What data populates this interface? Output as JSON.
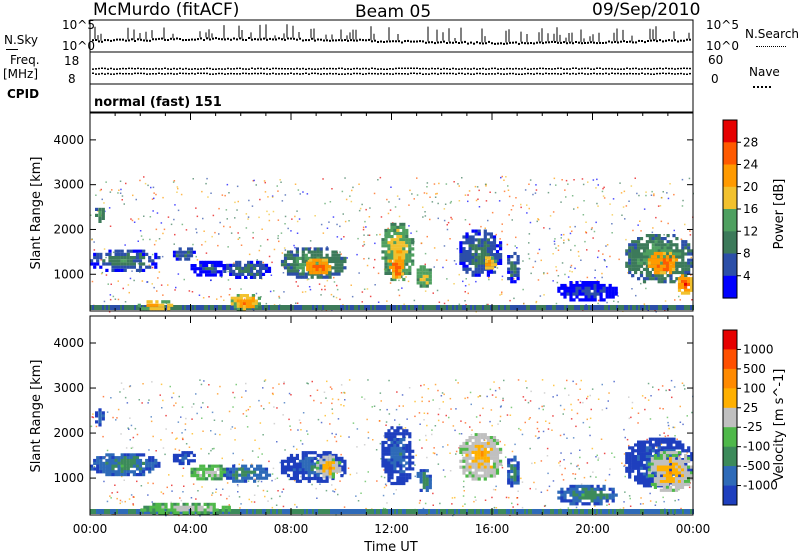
{
  "header": {
    "station": "McMurdo (fitACF)",
    "beam": "Beam 05",
    "date": "09/Sep/2010"
  },
  "left_labels": {
    "nsky": "N.Sky",
    "freq": "Freq.",
    "freq_unit": "[MHz]",
    "cpid": "CPID"
  },
  "right_labels": {
    "nsearch": "N.Search",
    "nave": "Nave"
  },
  "cpid_text": "normal (fast) 151",
  "colors": {
    "power": [
      "#0000ff",
      "#2c4fa8",
      "#3c7a5a",
      "#4fa060",
      "#f2c12e",
      "#ff9a00",
      "#ff5a00",
      "#e60000"
    ],
    "velocity": [
      "#1e3fbe",
      "#2e6ab8",
      "#3c8a5a",
      "#4fb84a",
      "#c0c0c0",
      "#ffb000",
      "#ff8a00",
      "#ff5000",
      "#e60000"
    ]
  },
  "chart_data": [
    {
      "type": "line",
      "name": "noise-panel",
      "left_ticks": [
        "10^5",
        "10^0"
      ],
      "right_ticks": [
        "10^5",
        "10^0"
      ],
      "note_left": "N.Sky",
      "note_right": "N.Search"
    },
    {
      "type": "line",
      "name": "frequency-panel",
      "left_ticks": [
        "18",
        "8"
      ],
      "right_ticks": [
        "60",
        "0"
      ],
      "note_left": "Freq. [MHz]",
      "note_right": "Nave"
    },
    {
      "type": "heatmap",
      "name": "power-panel",
      "ylabel": "Slant Range [km]",
      "yticks": [
        1000,
        2000,
        3000,
        4000
      ],
      "ylim": [
        180,
        4600
      ],
      "xlim": [
        0,
        24
      ],
      "colorbar": {
        "label": "Power [dB]",
        "ticks": [
          "28",
          "24",
          "20",
          "16",
          "12",
          "8",
          "4"
        ],
        "range": [
          0,
          32
        ]
      },
      "patches": [
        {
          "t0": 0.2,
          "t1": 0.6,
          "r0": 2150,
          "r1": 2550,
          "level": 4
        },
        {
          "t0": 0.0,
          "t1": 2.8,
          "r0": 1050,
          "r1": 1550,
          "level": 3
        },
        {
          "t0": 3.3,
          "t1": 4.2,
          "r0": 1300,
          "r1": 1600,
          "level": 3
        },
        {
          "t0": 4.0,
          "t1": 5.5,
          "r0": 950,
          "r1": 1300,
          "level": 2
        },
        {
          "t0": 5.3,
          "t1": 7.2,
          "r0": 900,
          "r1": 1300,
          "level": 3
        },
        {
          "t0": 7.6,
          "t1": 10.2,
          "r0": 900,
          "r1": 1600,
          "level": 4
        },
        {
          "t0": 8.6,
          "t1": 9.6,
          "r0": 1000,
          "r1": 1350,
          "level": 7
        },
        {
          "t0": 11.6,
          "t1": 12.9,
          "r0": 850,
          "r1": 2150,
          "level": 5
        },
        {
          "t0": 11.9,
          "t1": 12.5,
          "r0": 900,
          "r1": 1400,
          "level": 7
        },
        {
          "t0": 13.0,
          "t1": 13.6,
          "r0": 700,
          "r1": 1200,
          "level": 5
        },
        {
          "t0": 14.7,
          "t1": 16.4,
          "r0": 950,
          "r1": 2000,
          "level": 3
        },
        {
          "t0": 15.6,
          "t1": 16.2,
          "r0": 1100,
          "r1": 1400,
          "level": 6
        },
        {
          "t0": 16.6,
          "t1": 17.1,
          "r0": 800,
          "r1": 1500,
          "level": 3
        },
        {
          "t0": 18.6,
          "t1": 21.0,
          "r0": 400,
          "r1": 850,
          "level": 2
        },
        {
          "t0": 21.3,
          "t1": 24.0,
          "r0": 800,
          "r1": 1900,
          "level": 4
        },
        {
          "t0": 22.2,
          "t1": 23.4,
          "r0": 1000,
          "r1": 1500,
          "level": 7
        },
        {
          "t0": 23.4,
          "t1": 24.0,
          "r0": 550,
          "r1": 1000,
          "level": 7
        },
        {
          "t0": 1.9,
          "t1": 3.3,
          "r0": 190,
          "r1": 420,
          "level": 6
        },
        {
          "t0": 5.6,
          "t1": 6.8,
          "r0": 190,
          "r1": 560,
          "level": 6
        }
      ]
    },
    {
      "type": "heatmap",
      "name": "velocity-panel",
      "ylabel": "Slant Range [km]",
      "yticks": [
        1000,
        2000,
        3000,
        4000
      ],
      "ylim": [
        180,
        4600
      ],
      "xlim": [
        0,
        24
      ],
      "xticks": [
        "00:00",
        "04:00",
        "08:00",
        "12:00",
        "16:00",
        "20:00",
        "00:00"
      ],
      "xlabel": "Time UT",
      "colorbar": {
        "label": "Velocity [m s^-1]",
        "ticks": [
          "1000",
          "500",
          "100",
          "25",
          "-25",
          "-100",
          "-500",
          "-1000"
        ],
        "range": [
          -1200,
          1200
        ]
      },
      "patches": [
        {
          "t0": 0.2,
          "t1": 0.6,
          "r0": 2150,
          "r1": 2550,
          "level": 2
        },
        {
          "t0": 0.0,
          "t1": 2.8,
          "r0": 1050,
          "r1": 1550,
          "level": 3
        },
        {
          "t0": 3.3,
          "t1": 4.2,
          "r0": 1300,
          "r1": 1600,
          "level": 2
        },
        {
          "t0": 4.0,
          "t1": 5.5,
          "r0": 950,
          "r1": 1300,
          "level": 5
        },
        {
          "t0": 5.3,
          "t1": 7.2,
          "r0": 900,
          "r1": 1300,
          "level": 3
        },
        {
          "t0": 7.6,
          "t1": 10.2,
          "r0": 900,
          "r1": 1600,
          "level": 2
        },
        {
          "t0": 9.0,
          "t1": 10.0,
          "r0": 1000,
          "r1": 1500,
          "level": 6
        },
        {
          "t0": 11.6,
          "t1": 12.9,
          "r0": 850,
          "r1": 2150,
          "level": 2
        },
        {
          "t0": 13.0,
          "t1": 13.6,
          "r0": 700,
          "r1": 1200,
          "level": 3
        },
        {
          "t0": 14.7,
          "t1": 16.4,
          "r0": 950,
          "r1": 2000,
          "level": 6
        },
        {
          "t0": 16.6,
          "t1": 17.1,
          "r0": 800,
          "r1": 1500,
          "level": 3
        },
        {
          "t0": 18.6,
          "t1": 21.0,
          "r0": 400,
          "r1": 850,
          "level": 3
        },
        {
          "t0": 21.3,
          "t1": 24.0,
          "r0": 800,
          "r1": 1900,
          "level": 2
        },
        {
          "t0": 22.2,
          "t1": 24.0,
          "r0": 700,
          "r1": 1600,
          "level": 6
        },
        {
          "t0": 2.0,
          "t1": 5.6,
          "r0": 200,
          "r1": 450,
          "level": 5
        }
      ]
    }
  ]
}
